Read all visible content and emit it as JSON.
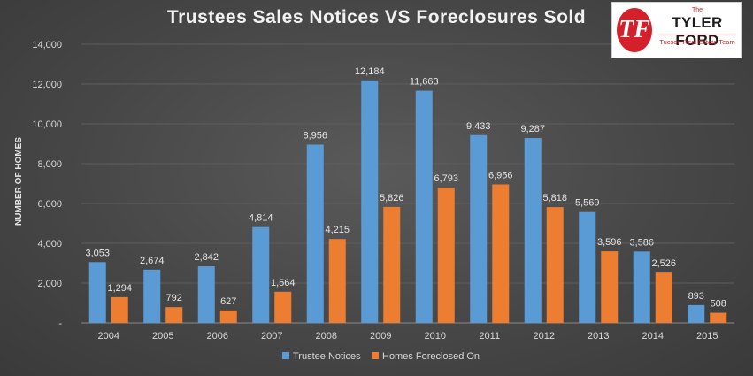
{
  "chart_data": {
    "type": "bar",
    "title": "Trustees Sales Notices VS Foreclosures Sold",
    "ylabel": "NUMBER OF HOMES",
    "xlabel": "",
    "categories": [
      "2004",
      "2005",
      "2006",
      "2007",
      "2008",
      "2009",
      "2010",
      "2011",
      "2012",
      "2013",
      "2014",
      "2015"
    ],
    "series": [
      {
        "name": "Trustee Notices",
        "color": "#5b9bd5",
        "values": [
          3053,
          2674,
          2842,
          4814,
          8956,
          12184,
          11663,
          9433,
          9287,
          5569,
          3586,
          893
        ]
      },
      {
        "name": "Homes Foreclosed On",
        "color": "#ed7d31",
        "values": [
          1294,
          792,
          627,
          1564,
          4215,
          5826,
          6793,
          6956,
          5818,
          3596,
          2526,
          508
        ]
      }
    ],
    "ylim": [
      0,
      14000
    ],
    "yticks": [
      0,
      2000,
      4000,
      6000,
      8000,
      10000,
      12000,
      14000
    ],
    "ytick_labels": [
      "-",
      "2,000",
      "4,000",
      "6,000",
      "8,000",
      "10,000",
      "12,000",
      "14,000"
    ],
    "grid": true,
    "legend": "bottom"
  },
  "logo": {
    "the": "The",
    "name": "TYLER FORD",
    "team": "Tucson Real Estate Team",
    "mark": "TF",
    "color": "#d3202a"
  }
}
